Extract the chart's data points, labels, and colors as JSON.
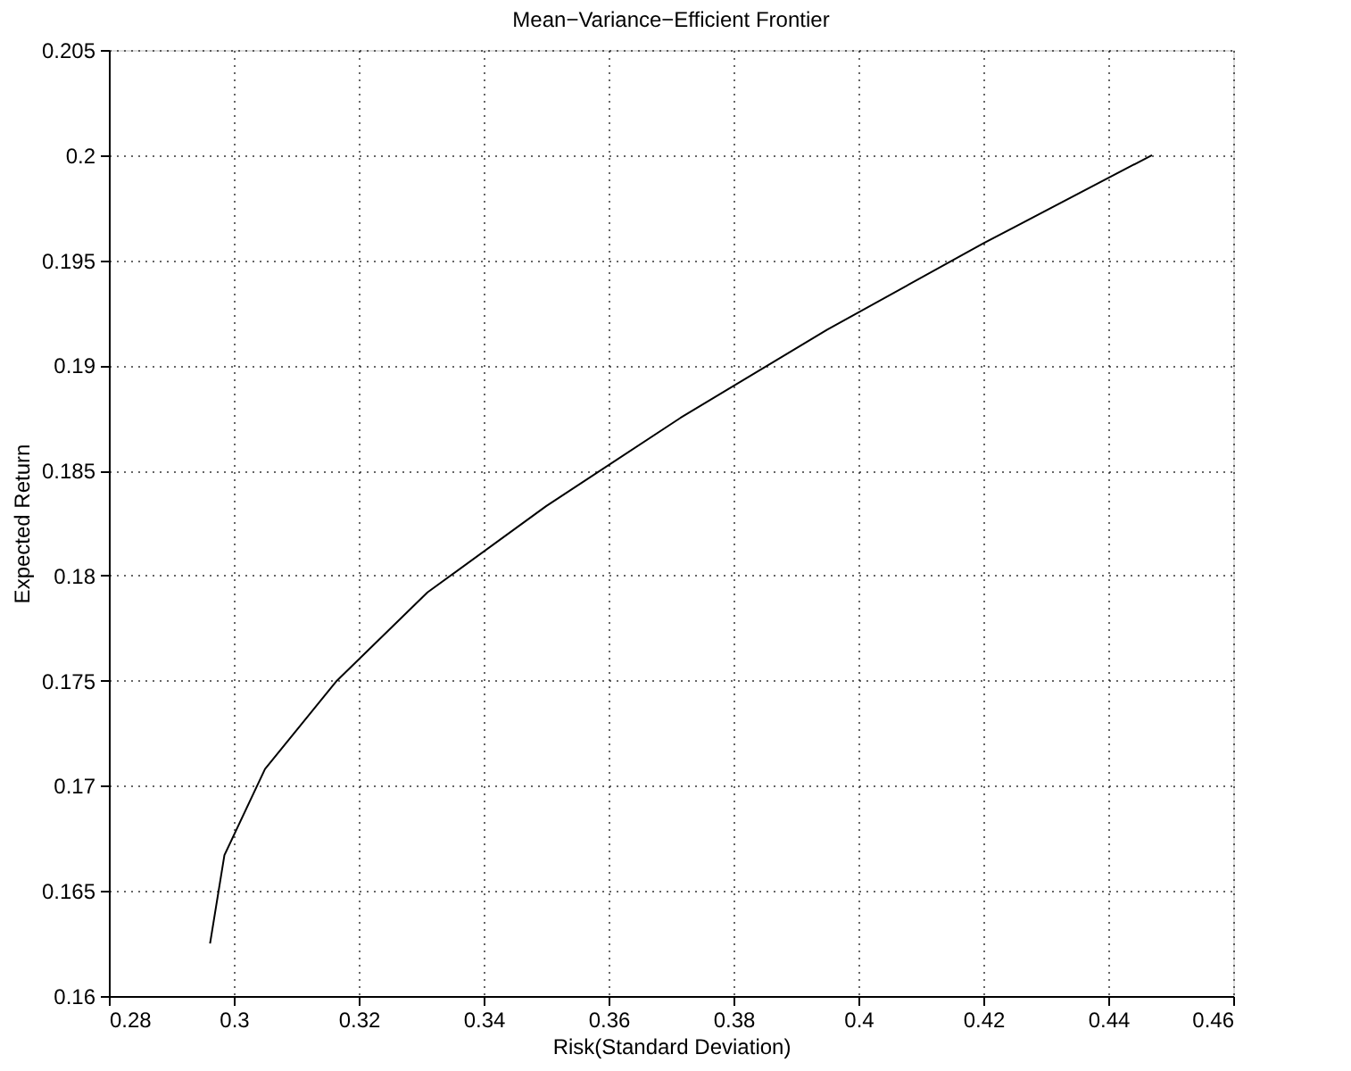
{
  "chart_data": {
    "type": "line",
    "title": "Mean−Variance−Efficient Frontier",
    "xlabel": "Risk(Standard Deviation)",
    "ylabel": "Expected Return",
    "series": [
      {
        "color": "#000000",
        "x": [
          0.2962,
          0.2985,
          0.305,
          0.3165,
          0.331,
          0.35,
          0.3715,
          0.395,
          0.42,
          0.447
        ],
        "values": [
          0.1625,
          0.1667,
          0.1708,
          0.175,
          0.1792,
          0.1833,
          0.1875,
          0.1917,
          0.1958,
          0.2
        ]
      }
    ],
    "xlim": [
      0.28,
      0.46
    ],
    "xticks": [
      0.28,
      0.3,
      0.32,
      0.34,
      0.36,
      0.38,
      0.4,
      0.42,
      0.44,
      0.46
    ],
    "ylim": [
      0.16,
      0.205
    ],
    "yticks": [
      0.16,
      0.165,
      0.17,
      0.175,
      0.18,
      0.185,
      0.19,
      0.195,
      0.2,
      0.205
    ],
    "grid": true,
    "line_style": "solid",
    "marker": "none"
  }
}
